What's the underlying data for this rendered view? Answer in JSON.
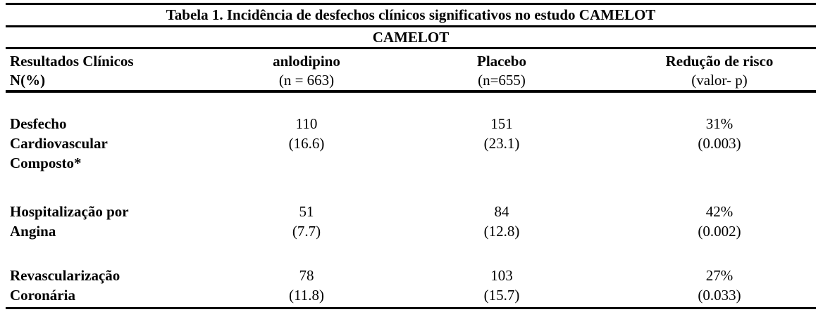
{
  "table": {
    "title": "Tabela 1. Incidência de desfechos clínicos significativos no estudo CAMELOT",
    "subtitle": "CAMELOT",
    "columns": [
      {
        "label": "Resultados Clínicos",
        "sub": "N(%)"
      },
      {
        "label": "anlodipino",
        "sub": "(n = 663)"
      },
      {
        "label": "Placebo",
        "sub": "(n=655)"
      },
      {
        "label": "Redução de risco",
        "sub": "(valor- p)"
      }
    ],
    "rows": [
      {
        "outcome": [
          "Desfecho",
          "Cardiovascular",
          "Composto*"
        ],
        "anlodipino": [
          "110",
          "(16.6)"
        ],
        "placebo": [
          "151",
          "(23.1)"
        ],
        "risk_reduction": [
          "31%",
          "(0.003)"
        ]
      },
      {
        "outcome": [
          "Hospitalização por",
          "Angina"
        ],
        "anlodipino": [
          "51",
          "(7.7)"
        ],
        "placebo": [
          "84",
          "(12.8)"
        ],
        "risk_reduction": [
          "42%",
          "(0.002)"
        ]
      },
      {
        "outcome": [
          "Revascularização",
          "Coronária"
        ],
        "anlodipino": [
          "78",
          "(11.8)"
        ],
        "placebo": [
          "103",
          "(15.7)"
        ],
        "risk_reduction": [
          "27%",
          "(0.033)"
        ]
      }
    ]
  }
}
